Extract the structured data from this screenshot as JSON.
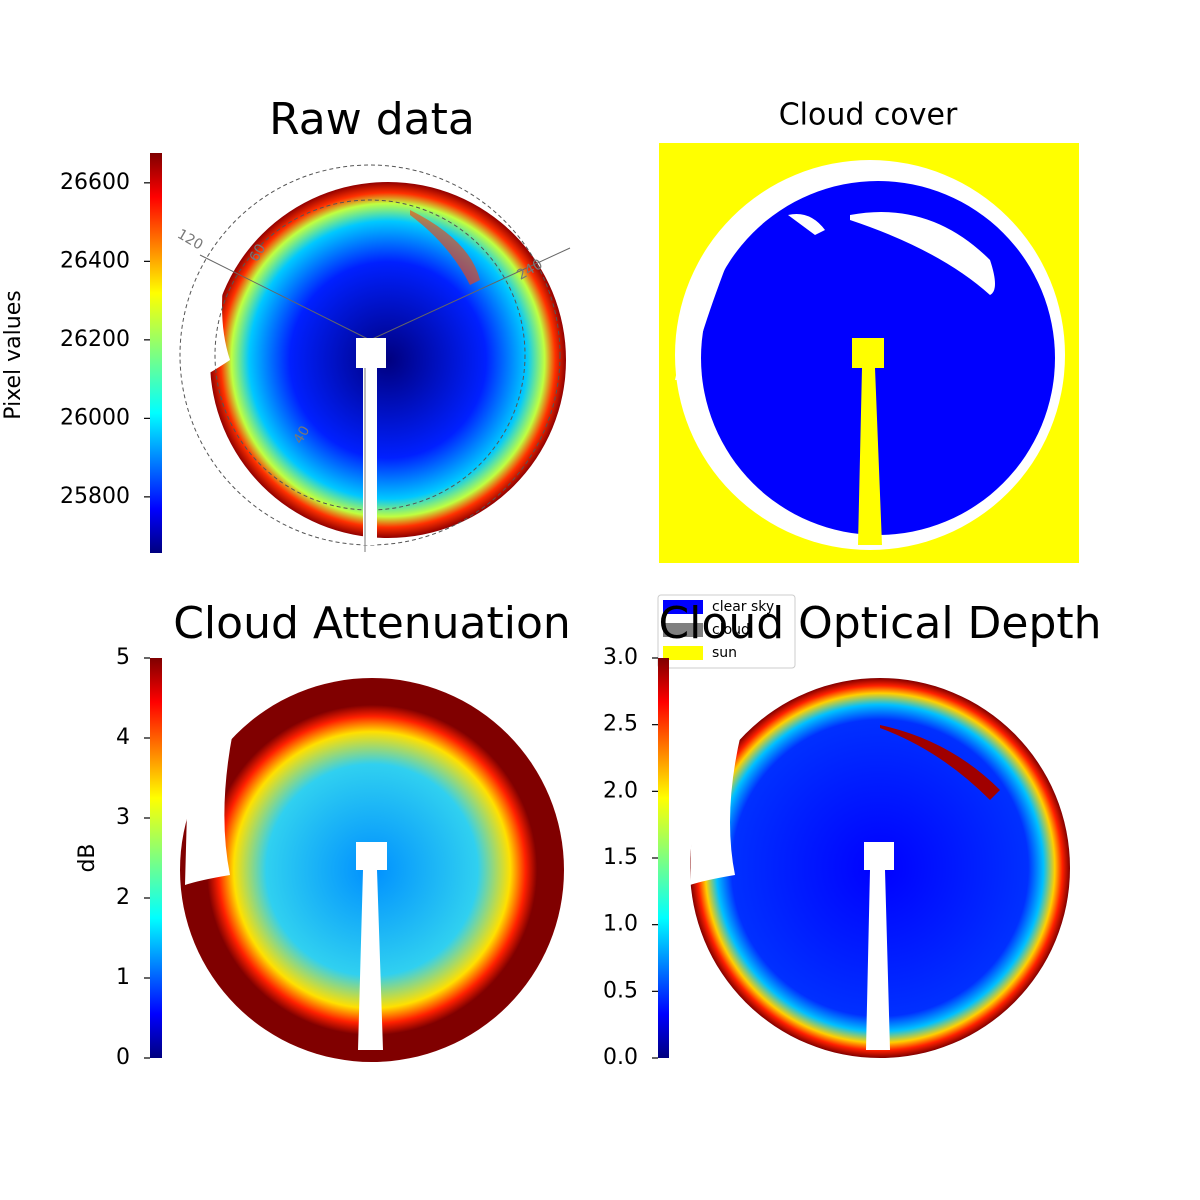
{
  "chart_data": [
    {
      "type": "image",
      "title": "Raw data",
      "colormap": "jet",
      "colorbar": {
        "label": "Pixel values",
        "lim": [
          25657,
          26676
        ],
        "ticks": [
          25800,
          26000,
          26200,
          26400,
          26600
        ]
      },
      "annotations": [
        "120",
        "60",
        "240",
        "40"
      ]
    },
    {
      "type": "image",
      "title": "Cloud cover",
      "legend": [
        {
          "name": "clear sky",
          "color": "#0000ff"
        },
        {
          "name": "cloud",
          "color": "#808080"
        },
        {
          "name": "sun",
          "color": "#ffff00"
        }
      ]
    },
    {
      "type": "image",
      "title": "Cloud Attenuation",
      "colormap": "jet",
      "colorbar": {
        "label": "dB",
        "lim": [
          0,
          5
        ],
        "ticks": [
          0,
          1,
          2,
          3,
          4,
          5
        ]
      }
    },
    {
      "type": "image",
      "title": "Cloud Optical Depth",
      "colormap": "jet",
      "colorbar": {
        "lim": [
          0,
          3
        ],
        "ticks": [
          {
            "value": 0,
            "label": "0.0"
          },
          {
            "value": 0.5,
            "label": "0.5"
          },
          {
            "value": 1,
            "label": "1.0"
          },
          {
            "value": 1.5,
            "label": "1.5"
          },
          {
            "value": 2,
            "label": "2.0"
          },
          {
            "value": 2.5,
            "label": "2.5"
          },
          {
            "value": 3,
            "label": "3.0"
          }
        ]
      }
    }
  ]
}
